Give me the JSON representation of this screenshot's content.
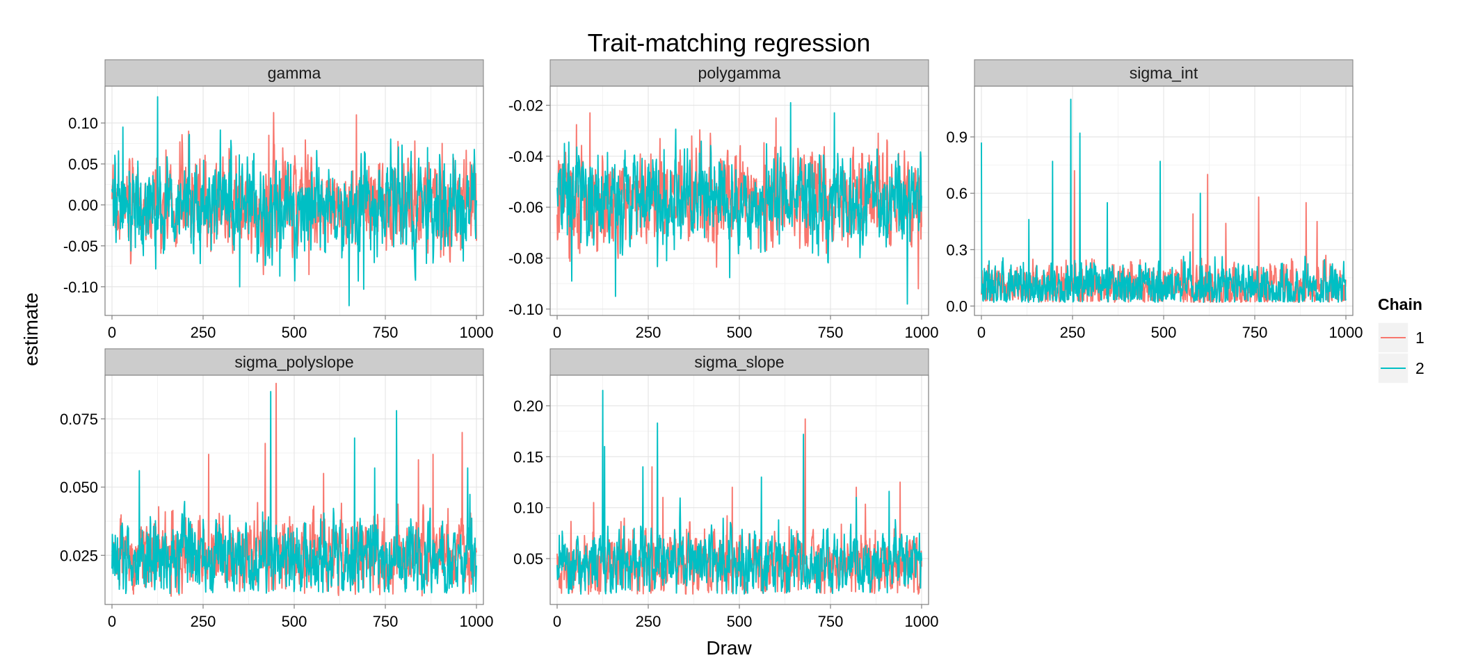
{
  "chart_data": {
    "type": "line",
    "title": "Trait-matching regression",
    "xlabel": "Draw",
    "ylabel": "estimate",
    "xlim": [
      0,
      1000
    ],
    "x_ticks": [
      0,
      250,
      500,
      750,
      1000
    ],
    "grid": true,
    "legend": {
      "title": "Chain",
      "placement": "right",
      "entries": [
        {
          "label": "1",
          "color": "#F8766D"
        },
        {
          "label": "2",
          "color": "#00BFC4"
        }
      ]
    },
    "panels": [
      {
        "name": "gamma",
        "ylim": [
          -0.135,
          0.145
        ],
        "y_ticks": [
          -0.1,
          -0.05,
          0.0,
          0.05,
          0.1
        ],
        "y_tick_labels": [
          "-0.10",
          "-0.05",
          "0.00",
          "0.05",
          "0.10"
        ],
        "series": [
          {
            "chain": "1",
            "n": 1000,
            "center": 0.0,
            "spread": 0.024,
            "bounds": [
              -0.11,
              0.115
            ],
            "peaks": [
              [
                670,
                0.11
              ],
              [
                210,
                0.09
              ],
              [
                430,
                0.085
              ],
              [
                830,
                0.078
              ],
              [
                905,
                0.075
              ],
              [
                415,
                -0.085
              ],
              [
                540,
                -0.085
              ]
            ]
          },
          {
            "chain": "2",
            "n": 1000,
            "center": 0.0,
            "spread": 0.026,
            "bounds": [
              -0.125,
              0.135
            ],
            "peaks": [
              [
                125,
                0.132
              ],
              [
                30,
                0.095
              ],
              [
                460,
                -0.087
              ],
              [
                650,
                -0.123
              ],
              [
                690,
                -0.103
              ],
              [
                350,
                -0.1
              ],
              [
                865,
                0.07
              ]
            ]
          }
        ]
      },
      {
        "name": "polygamma",
        "ylim": [
          -0.1025,
          -0.0125
        ],
        "y_ticks": [
          -0.1,
          -0.08,
          -0.06,
          -0.04,
          -0.02
        ],
        "y_tick_labels": [
          "-0.10",
          "-0.08",
          "-0.06",
          "-0.04",
          "-0.02"
        ],
        "series": [
          {
            "chain": "1",
            "n": 1000,
            "center": -0.057,
            "spread": 0.008,
            "bounds": [
              -0.095,
              -0.022
            ],
            "peaks": [
              [
                90,
                -0.023
              ],
              [
                600,
                -0.025
              ],
              [
                990,
                -0.092
              ],
              [
                420,
                -0.031
              ],
              [
                880,
                -0.031
              ]
            ]
          },
          {
            "chain": "2",
            "n": 1000,
            "center": -0.057,
            "spread": 0.008,
            "bounds": [
              -0.1,
              -0.018
            ],
            "peaks": [
              [
                640,
                -0.019
              ],
              [
                760,
                -0.023
              ],
              [
                160,
                -0.095
              ],
              [
                960,
                -0.098
              ],
              [
                40,
                -0.089
              ],
              [
                300,
                -0.081
              ],
              [
                700,
                -0.078
              ]
            ]
          }
        ]
      },
      {
        "name": "sigma_int",
        "ylim": [
          -0.05,
          1.17
        ],
        "y_ticks": [
          0.0,
          0.3,
          0.6,
          0.9
        ],
        "y_tick_labels": [
          "0.0",
          "0.3",
          "0.6",
          "0.9"
        ],
        "series": [
          {
            "chain": "1",
            "n": 1000,
            "center": 0.1,
            "spread": 0.06,
            "bounds": [
              0.02,
              0.8
            ],
            "peaks": [
              [
                255,
                0.72
              ],
              [
                620,
                0.7
              ],
              [
                760,
                0.58
              ],
              [
                890,
                0.55
              ],
              [
                580,
                0.49
              ],
              [
                920,
                0.45
              ],
              [
                670,
                0.44
              ]
            ]
          },
          {
            "chain": "2",
            "n": 1000,
            "center": 0.1,
            "spread": 0.06,
            "bounds": [
              0.02,
              1.12
            ],
            "peaks": [
              [
                0,
                0.87
              ],
              [
                245,
                1.1
              ],
              [
                270,
                0.92
              ],
              [
                195,
                0.77
              ],
              [
                490,
                0.77
              ],
              [
                345,
                0.55
              ],
              [
                130,
                0.46
              ],
              [
                600,
                0.6
              ]
            ]
          }
        ]
      },
      {
        "name": "sigma_polyslope",
        "ylim": [
          0.007,
          0.091
        ],
        "y_ticks": [
          0.025,
          0.05,
          0.075
        ],
        "y_tick_labels": [
          "0.025",
          "0.050",
          "0.075"
        ],
        "series": [
          {
            "chain": "1",
            "n": 1000,
            "center": 0.025,
            "spread": 0.006,
            "bounds": [
              0.01,
              0.09
            ],
            "peaks": [
              [
                450,
                0.088
              ],
              [
                420,
                0.066
              ],
              [
                265,
                0.062
              ],
              [
                960,
                0.07
              ],
              [
                580,
                0.055
              ],
              [
                880,
                0.062
              ],
              [
                840,
                0.06
              ]
            ]
          },
          {
            "chain": "2",
            "n": 1000,
            "center": 0.024,
            "spread": 0.006,
            "bounds": [
              0.011,
              0.086
            ],
            "peaks": [
              [
                435,
                0.085
              ],
              [
                780,
                0.078
              ],
              [
                665,
                0.068
              ],
              [
                75,
                0.056
              ],
              [
                975,
                0.057
              ],
              [
                720,
                0.057
              ]
            ]
          }
        ]
      },
      {
        "name": "sigma_slope",
        "ylim": [
          0.005,
          0.23
        ],
        "y_ticks": [
          0.05,
          0.1,
          0.15,
          0.2
        ],
        "y_tick_labels": [
          "0.05",
          "0.10",
          "0.15",
          "0.20"
        ],
        "series": [
          {
            "chain": "1",
            "n": 1000,
            "center": 0.045,
            "spread": 0.014,
            "bounds": [
              0.015,
              0.19
            ],
            "peaks": [
              [
                680,
                0.187
              ],
              [
                260,
                0.14
              ],
              [
                480,
                0.12
              ],
              [
                820,
                0.12
              ],
              [
                940,
                0.125
              ],
              [
                290,
                0.11
              ],
              [
                100,
                0.105
              ]
            ]
          },
          {
            "chain": "2",
            "n": 1000,
            "center": 0.045,
            "spread": 0.014,
            "bounds": [
              0.015,
              0.216
            ],
            "peaks": [
              [
                125,
                0.215
              ],
              [
                275,
                0.183
              ],
              [
                130,
                0.16
              ],
              [
                675,
                0.172
              ],
              [
                235,
                0.14
              ],
              [
                560,
                0.13
              ],
              [
                910,
                0.116
              ],
              [
                820,
                0.11
              ]
            ]
          }
        ]
      }
    ]
  }
}
